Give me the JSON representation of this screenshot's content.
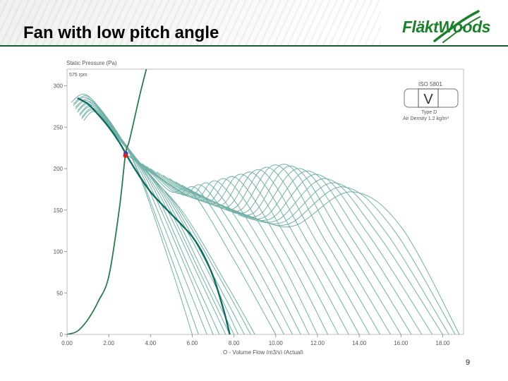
{
  "slide": {
    "title": "Fan with low pitch angle",
    "logo_text": "FläktWoods",
    "page_number": "9"
  },
  "colors": {
    "curve": "#72b0a8",
    "operating_curve": "#0d6b62",
    "system_curve": "#2c7a4a",
    "point_red": "#e02020",
    "point_blue": "#2a3fc0",
    "brand_green": "#1c7f2c"
  },
  "chart_data": {
    "type": "line",
    "ylabel": "Static Pressure (Pa)",
    "xlabel": "Q - Volume Flow (m3/s) (Actual)",
    "speed_label": "575 rpm",
    "xlim": [
      0,
      19
    ],
    "ylim": [
      0,
      320
    ],
    "x_ticks": [
      "0.00",
      "2.00",
      "4.00",
      "6.00",
      "8.00",
      "10.00",
      "12.00",
      "14.00",
      "16.00",
      "18.00"
    ],
    "y_ticks": [
      "0",
      "50",
      "100",
      "150",
      "200",
      "250",
      "300"
    ],
    "grid": false,
    "info_box": {
      "standard": "ISO 5801",
      "symbol": "V",
      "type": "Type D",
      "density": "Air Density 1.2 kg/m³"
    },
    "operating_point": {
      "x": 2.8,
      "y": 217
    },
    "system_curve": {
      "x": [
        0.0,
        0.5,
        1.0,
        1.5,
        2.0,
        2.5,
        2.8,
        3.0,
        3.5,
        3.8
      ],
      "y": [
        0,
        4,
        18,
        40,
        70,
        150,
        217,
        235,
        290,
        320
      ]
    },
    "fan_curves": [
      {
        "x": [
          0.2,
          0.8,
          1.5,
          2.5,
          3.5,
          5.0,
          6.0
        ],
        "y": [
          280,
          290,
          275,
          240,
          190,
          80,
          0
        ]
      },
      {
        "x": [
          0.3,
          0.9,
          1.6,
          2.6,
          3.6,
          5.2,
          6.3
        ],
        "y": [
          278,
          288,
          272,
          236,
          186,
          78,
          0
        ]
      },
      {
        "x": [
          0.3,
          0.9,
          1.7,
          2.7,
          3.8,
          5.5,
          6.7
        ],
        "y": [
          276,
          286,
          268,
          232,
          182,
          76,
          0
        ]
      },
      {
        "x": [
          0.4,
          1.0,
          1.8,
          2.8,
          4.0,
          5.8,
          7.0
        ],
        "y": [
          274,
          284,
          264,
          228,
          178,
          74,
          0
        ]
      },
      {
        "x": [
          0.4,
          1.0,
          1.9,
          2.9,
          4.2,
          6.0,
          7.3
        ],
        "y": [
          272,
          282,
          260,
          224,
          174,
          72,
          0
        ]
      },
      {
        "x": [
          0.5,
          1.1,
          2.0,
          3.0,
          4.4,
          6.3,
          7.6
        ],
        "y": [
          270,
          280,
          256,
          220,
          170,
          70,
          0
        ]
      },
      {
        "x": [
          0.5,
          1.1,
          2.1,
          3.2,
          4.6,
          6.5,
          7.8
        ],
        "y": [
          268,
          278,
          252,
          216,
          166,
          68,
          0
        ]
      },
      {
        "x": [
          0.6,
          1.2,
          2.2,
          3.3,
          4.8,
          6.7,
          8.0
        ],
        "y": [
          266,
          276,
          248,
          212,
          162,
          66,
          0
        ]
      },
      {
        "x": [
          0.6,
          1.2,
          2.3,
          3.4,
          5.0,
          7.0,
          8.2
        ],
        "y": [
          264,
          274,
          244,
          208,
          158,
          64,
          0
        ]
      },
      {
        "x": [
          0.7,
          1.3,
          2.4,
          3.6,
          5.2,
          7.2,
          8.5
        ],
        "y": [
          262,
          272,
          240,
          204,
          154,
          62,
          0
        ]
      },
      {
        "x": [
          0.7,
          1.3,
          2.5,
          3.7,
          5.4,
          7.5,
          8.8
        ],
        "y": [
          260,
          270,
          236,
          200,
          150,
          60,
          0
        ]
      },
      {
        "x": [
          0.8,
          1.4,
          2.6,
          3.8,
          5.6,
          7.7,
          9.0
        ],
        "y": [
          258,
          268,
          232,
          196,
          146,
          58,
          0
        ]
      },
      {
        "x": [
          2.8,
          4.0,
          5.0,
          6.0,
          8.0,
          10.0
        ],
        "y": [
          218,
          195,
          172,
          171,
          90,
          0
        ]
      },
      {
        "x": [
          3.0,
          4.2,
          5.3,
          6.3,
          8.4,
          10.4
        ],
        "y": [
          215,
          192,
          170,
          174,
          92,
          0
        ]
      },
      {
        "x": [
          3.2,
          4.4,
          5.6,
          6.6,
          8.8,
          10.8
        ],
        "y": [
          212,
          189,
          168,
          177,
          94,
          0
        ]
      },
      {
        "x": [
          3.4,
          4.6,
          5.9,
          6.9,
          9.2,
          11.2
        ],
        "y": [
          209,
          186,
          166,
          180,
          96,
          0
        ]
      },
      {
        "x": [
          3.6,
          4.8,
          6.2,
          7.3,
          9.6,
          11.6
        ],
        "y": [
          206,
          183,
          164,
          183,
          98,
          0
        ]
      },
      {
        "x": [
          3.8,
          5.0,
          6.5,
          7.7,
          10.0,
          12.0
        ],
        "y": [
          203,
          180,
          162,
          186,
          100,
          0
        ]
      },
      {
        "x": [
          4.0,
          5.3,
          6.8,
          8.1,
          10.4,
          12.5
        ],
        "y": [
          200,
          177,
          160,
          189,
          102,
          0
        ]
      },
      {
        "x": [
          4.3,
          5.6,
          7.1,
          8.5,
          10.8,
          13.0
        ],
        "y": [
          196,
          174,
          158,
          192,
          104,
          0
        ]
      },
      {
        "x": [
          4.6,
          5.9,
          7.4,
          8.9,
          11.2,
          13.5
        ],
        "y": [
          192,
          171,
          156,
          195,
          106,
          0
        ]
      },
      {
        "x": [
          4.9,
          6.2,
          7.7,
          9.3,
          11.6,
          14.0
        ],
        "y": [
          188,
          168,
          154,
          198,
          108,
          0
        ]
      },
      {
        "x": [
          5.2,
          6.5,
          8.0,
          9.7,
          12.0,
          14.5
        ],
        "y": [
          184,
          165,
          152,
          201,
          110,
          0
        ]
      },
      {
        "x": [
          5.5,
          6.8,
          8.3,
          10.1,
          12.4,
          15.0
        ],
        "y": [
          180,
          162,
          150,
          204,
          112,
          0
        ]
      },
      {
        "x": [
          5.8,
          7.1,
          8.6,
          10.5,
          12.8,
          15.5
        ],
        "y": [
          176,
          159,
          148,
          205,
          114,
          0
        ]
      },
      {
        "x": [
          6.1,
          7.4,
          8.9,
          10.8,
          13.2,
          16.0
        ],
        "y": [
          172,
          156,
          146,
          203,
          116,
          0
        ]
      },
      {
        "x": [
          6.4,
          7.7,
          9.2,
          11.2,
          13.6,
          16.5
        ],
        "y": [
          168,
          153,
          144,
          200,
          118,
          0
        ]
      },
      {
        "x": [
          6.7,
          8.0,
          9.5,
          11.6,
          14.0,
          17.0
        ],
        "y": [
          164,
          150,
          142,
          197,
          120,
          0
        ]
      },
      {
        "x": [
          7.0,
          8.3,
          9.8,
          12.0,
          14.4,
          17.5
        ],
        "y": [
          160,
          147,
          140,
          193,
          122,
          0
        ]
      },
      {
        "x": [
          7.3,
          8.6,
          10.1,
          12.4,
          14.8,
          18.0
        ],
        "y": [
          156,
          144,
          138,
          188,
          124,
          0
        ]
      },
      {
        "x": [
          7.6,
          8.9,
          10.4,
          12.8,
          15.2,
          18.3
        ],
        "y": [
          152,
          141,
          136,
          183,
          126,
          0
        ]
      },
      {
        "x": [
          7.9,
          9.2,
          10.7,
          13.2,
          15.6,
          18.6
        ],
        "y": [
          148,
          138,
          134,
          178,
          128,
          0
        ]
      },
      {
        "x": [
          8.2,
          9.5,
          11.0,
          13.6,
          16.0,
          18.8
        ],
        "y": [
          144,
          135,
          132,
          172,
          130,
          0
        ]
      }
    ],
    "operating_curve": {
      "x": [
        0.5,
        1.0,
        1.5,
        2.0,
        2.5,
        3.0,
        3.5,
        4.0,
        4.5,
        5.0,
        5.5,
        6.0,
        6.5,
        7.0,
        7.5,
        7.8
      ],
      "y": [
        285,
        278,
        265,
        250,
        232,
        210,
        190,
        172,
        158,
        145,
        132,
        118,
        98,
        70,
        30,
        0
      ]
    }
  }
}
